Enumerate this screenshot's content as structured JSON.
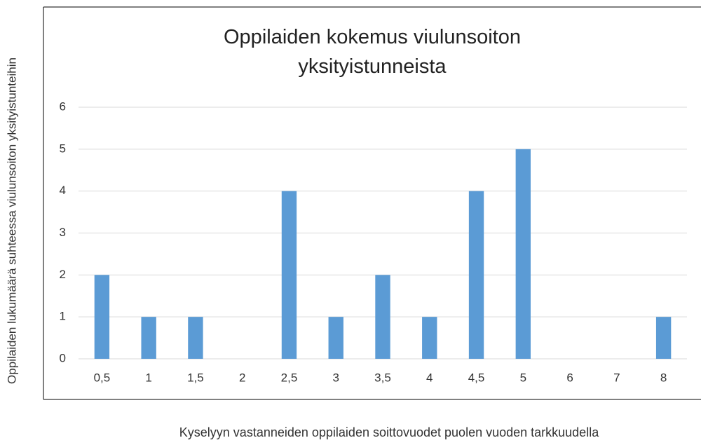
{
  "chart_data": {
    "type": "bar",
    "title": "Oppilaiden kokemus viulunsoiton yksityistunneista",
    "x_label": "Kyselyyn vastanneiden oppilaiden soittovuodet puolen vuoden tarkkuudella",
    "y_label": "Oppilaiden lukumäärä suhteessa viulunsoiton yksityistunteihin",
    "categories": [
      "0,5",
      "1",
      "1,5",
      "2",
      "2,5",
      "3",
      "3,5",
      "4",
      "4,5",
      "5",
      "6",
      "7",
      "8"
    ],
    "values": [
      2,
      1,
      1,
      0,
      4,
      1,
      2,
      1,
      4,
      5,
      0,
      0,
      1
    ],
    "color": "#5b9bd5",
    "ylim": [
      0,
      6
    ],
    "yticks": [
      0,
      1,
      2,
      3,
      4,
      5,
      6
    ],
    "grid": true
  }
}
